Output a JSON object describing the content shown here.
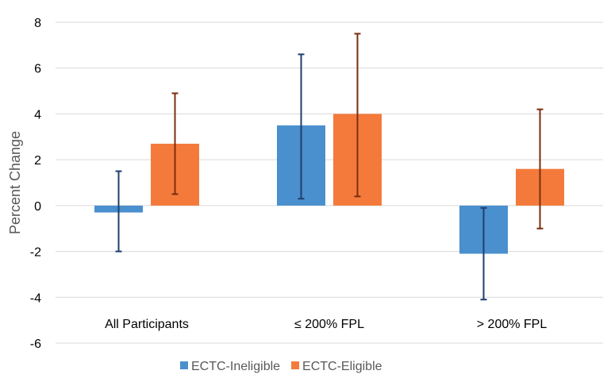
{
  "chart_data": {
    "type": "bar",
    "ylabel": "Percent Change",
    "xlabel": "",
    "ylim": [
      -6,
      8
    ],
    "yticks": [
      -6,
      -4,
      -2,
      0,
      2,
      4,
      6,
      8
    ],
    "grid": true,
    "legend_position": "bottom",
    "categories": [
      "All Participants",
      "≤ 200% FPL",
      "> 200% FPL"
    ],
    "series": [
      {
        "name": "ECTC-Ineligible",
        "color": "#4a8fce",
        "error_color": "#1f3f6b",
        "values": [
          -0.3,
          3.5,
          -2.1
        ],
        "error_low": [
          -2.0,
          0.3,
          -4.1
        ],
        "error_high": [
          1.5,
          6.6,
          -0.1
        ]
      },
      {
        "name": "ECTC-Eligible",
        "color": "#f47a3c",
        "error_color": "#7a2e0e",
        "values": [
          2.7,
          4.0,
          1.6
        ],
        "error_low": [
          0.5,
          0.4,
          -1.0
        ],
        "error_high": [
          4.9,
          7.5,
          4.2
        ]
      }
    ]
  }
}
